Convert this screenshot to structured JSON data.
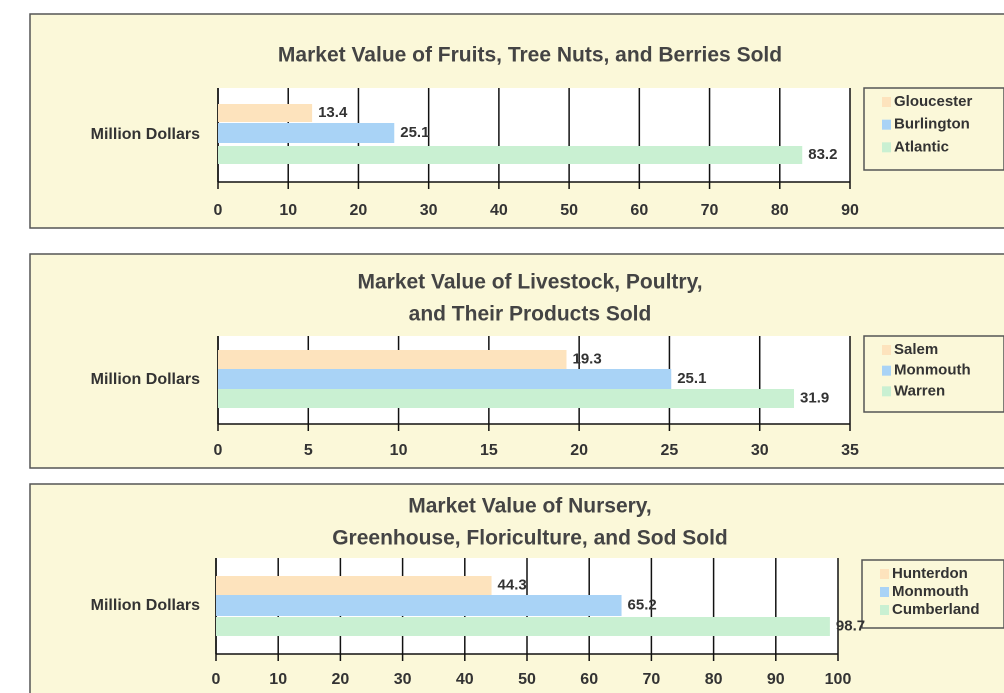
{
  "chart_data": [
    {
      "type": "bar",
      "orientation": "horizontal",
      "title": [
        "Market Value of Fruits, Tree Nuts, and Berries Sold"
      ],
      "categories": [
        "Million Dollars"
      ],
      "series": [
        {
          "name": "Gloucester",
          "color": "#fde3bd",
          "values": [
            13.4
          ]
        },
        {
          "name": "Burlington",
          "color": "#a9d3f6",
          "values": [
            25.1
          ]
        },
        {
          "name": "Atlantic",
          "color": "#c9f0d2",
          "values": [
            83.2
          ]
        }
      ],
      "xlim": [
        0,
        90
      ],
      "xticks": [
        0,
        10,
        20,
        30,
        40,
        50,
        60,
        70,
        80,
        90
      ],
      "grid": true,
      "legend": "right"
    },
    {
      "type": "bar",
      "orientation": "horizontal",
      "title": [
        "Market Value of Livestock, Poultry,",
        "and Their Products Sold"
      ],
      "categories": [
        "Million Dollars"
      ],
      "series": [
        {
          "name": "Salem",
          "color": "#fde3bd",
          "values": [
            19.3
          ]
        },
        {
          "name": "Monmouth",
          "color": "#a9d3f6",
          "values": [
            25.1
          ]
        },
        {
          "name": "Warren",
          "color": "#c9f0d2",
          "values": [
            31.9
          ]
        }
      ],
      "xlim": [
        0,
        35
      ],
      "xticks": [
        0,
        5,
        10,
        15,
        20,
        25,
        30,
        35
      ],
      "grid": true,
      "legend": "right"
    },
    {
      "type": "bar",
      "orientation": "horizontal",
      "title": [
        "Market Value of Nursery,",
        "Greenhouse, Floriculture, and Sod Sold"
      ],
      "categories": [
        "Million Dollars"
      ],
      "series": [
        {
          "name": "Hunterdon",
          "color": "#fde3bd",
          "values": [
            44.3
          ]
        },
        {
          "name": "Monmouth",
          "color": "#a9d3f6",
          "values": [
            65.2
          ]
        },
        {
          "name": "Cumberland",
          "color": "#c9f0d2",
          "values": [
            98.7
          ]
        }
      ],
      "xlim": [
        0,
        100
      ],
      "xticks": [
        0,
        10,
        20,
        30,
        40,
        50,
        60,
        70,
        80,
        90,
        100
      ],
      "grid": true,
      "legend": "right"
    }
  ]
}
